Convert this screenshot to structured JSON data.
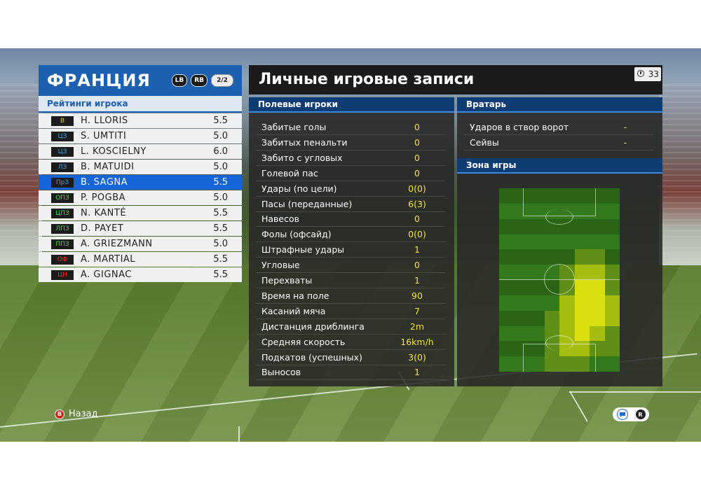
{
  "team": {
    "name": "ФРАНЦИЯ",
    "lb_label": "LB",
    "rb_label": "RB",
    "page": "2/2"
  },
  "ratings_title": "Рейтинги игрока",
  "players": [
    {
      "pos": "В",
      "pos_color": "#f2c40e",
      "name": "H. LLORIS",
      "rating": "5.5"
    },
    {
      "pos": "ЦЗ",
      "pos_color": "#3ea6e8",
      "name": "S. UMTITI",
      "rating": "5.0"
    },
    {
      "pos": "ЦЗ",
      "pos_color": "#3ea6e8",
      "name": "L. KOSCIELNY",
      "rating": "6.0"
    },
    {
      "pos": "ЛЗ",
      "pos_color": "#3ea6e8",
      "name": "B. MATUIDI",
      "rating": "5.0"
    },
    {
      "pos": "ПрЗ",
      "pos_color": "#3ea6e8",
      "name": "B. SAGNA",
      "rating": "5.5",
      "selected": true
    },
    {
      "pos": "ОПЗ",
      "pos_color": "#4fd34a",
      "name": "P. POGBA",
      "rating": "5.0"
    },
    {
      "pos": "ЦПЗ",
      "pos_color": "#4fd34a",
      "name": "N. KANTÉ",
      "rating": "5.5"
    },
    {
      "pos": "ЛПЗ",
      "pos_color": "#4fd34a",
      "name": "D. PAYET",
      "rating": "5.5"
    },
    {
      "pos": "ППЗ",
      "pos_color": "#4fd34a",
      "name": "A. GRIEZMANN",
      "rating": "5.0"
    },
    {
      "pos": "ОФ",
      "pos_color": "#e8352a",
      "name": "A. MARTIAL",
      "rating": "5.5"
    },
    {
      "pos": "ЦН",
      "pos_color": "#e8352a",
      "name": "A. GIGNAC",
      "rating": "5.5"
    }
  ],
  "records": {
    "title": "Личные игровые записи",
    "timer": "33",
    "field_header": "Полевые игроки",
    "stats": [
      {
        "label": "Забитые голы",
        "value": "0"
      },
      {
        "label": "Забитых пенальти",
        "value": "0"
      },
      {
        "label": "Забито с угловых",
        "value": "0"
      },
      {
        "label": "Голевой пас",
        "value": "0"
      },
      {
        "label": "Удары (по цели)",
        "value": "0(0)"
      },
      {
        "label": "Пасы (переданные)",
        "value": "6(3)"
      },
      {
        "label": "Навесов",
        "value": "0"
      },
      {
        "label": "Фолы (офсайд)",
        "value": "0(0)"
      },
      {
        "label": "Штрафные удары",
        "value": "1"
      },
      {
        "label": "Угловые",
        "value": "0"
      },
      {
        "label": "Перехваты",
        "value": "1"
      },
      {
        "label": "Время на поле",
        "value": "90"
      },
      {
        "label": "Касаний мяча",
        "value": "7"
      },
      {
        "label": "Дистанция дриблинга",
        "value": "2m"
      },
      {
        "label": "Средняя скорость",
        "value": "16km/h"
      },
      {
        "label": "Подкатов (успешных)",
        "value": "3(0)"
      },
      {
        "label": "Выносов",
        "value": "1"
      }
    ],
    "gk_header": "Вратарь",
    "gk_stats": [
      {
        "label": "Ударов в створ ворот",
        "value": "-"
      },
      {
        "label": "Сейвы",
        "value": "-"
      }
    ],
    "zone_header": "Зона игры",
    "heatmap": {
      "cols": 8,
      "rows": 12,
      "cells": [
        [
          0,
          0,
          0,
          0,
          0,
          0,
          0,
          0
        ],
        [
          0,
          0,
          0,
          0,
          0,
          0,
          0,
          0
        ],
        [
          0,
          0,
          0,
          0,
          0,
          0,
          0,
          0
        ],
        [
          0,
          0,
          0,
          0,
          0,
          0,
          0,
          0
        ],
        [
          0,
          0,
          0,
          0,
          0,
          1,
          1,
          0
        ],
        [
          0,
          0,
          0,
          0,
          1,
          2,
          2,
          1
        ],
        [
          0,
          0,
          0,
          0,
          1,
          3,
          3,
          1
        ],
        [
          0,
          0,
          0,
          0,
          2,
          3,
          3,
          2
        ],
        [
          0,
          0,
          0,
          1,
          2,
          3,
          3,
          2
        ],
        [
          0,
          0,
          0,
          1,
          2,
          3,
          2,
          1
        ],
        [
          0,
          0,
          0,
          1,
          2,
          2,
          1,
          1
        ],
        [
          0,
          0,
          0,
          1,
          1,
          1,
          0,
          0
        ]
      ]
    }
  },
  "footer": {
    "back_button_glyph": "B",
    "back_label": "Назад",
    "controls_glyph": "R"
  }
}
